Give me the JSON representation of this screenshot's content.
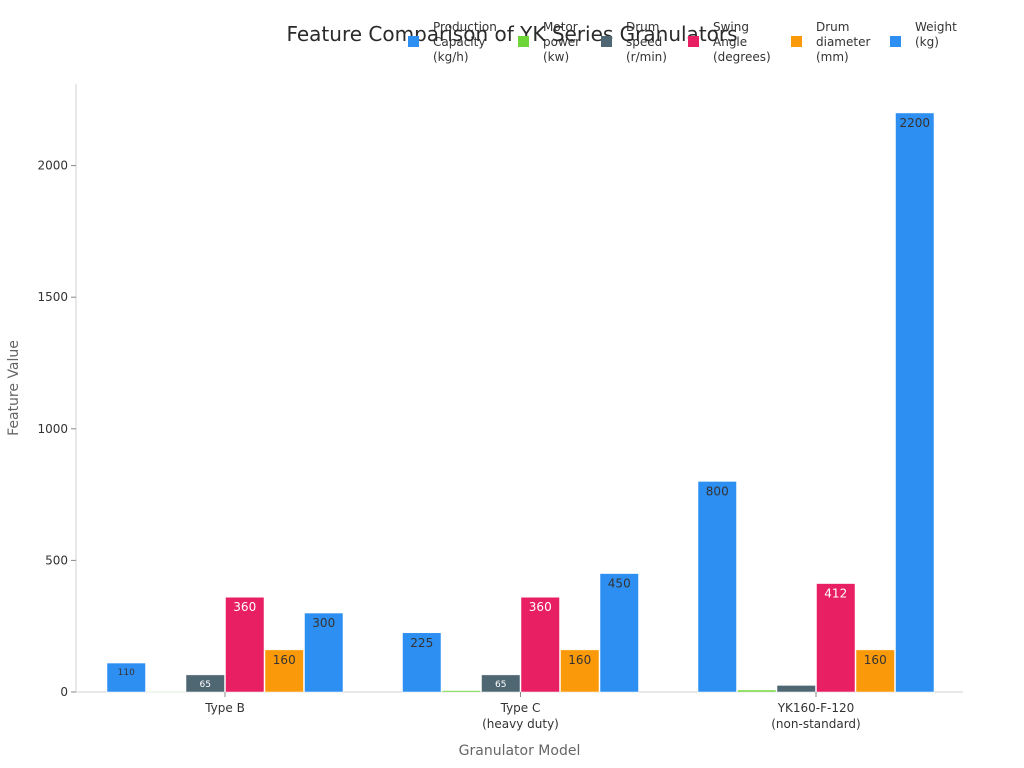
{
  "chart_data": {
    "type": "bar",
    "title": "Feature Comparison of YK Series Granulators",
    "xlabel": "Granulator Model",
    "ylabel": "Feature Value",
    "ylim": [
      0,
      2310
    ],
    "yticks": [
      0,
      500,
      1000,
      1500,
      2000
    ],
    "grid": false,
    "legend_position": "top-right",
    "categories": [
      "Type B\n",
      "Type C\n(heavy duty)",
      "YK160-F-120\n(non-standard)"
    ],
    "category_labels": [
      [
        "Type B"
      ],
      [
        "Type C",
        "(heavy duty)"
      ],
      [
        "YK160-F-120",
        "(non-standard)"
      ]
    ],
    "series": [
      {
        "name": "Production\nCapacity\n(kg/h)",
        "color": "#2e8ff2",
        "values": [
          110,
          225,
          800
        ],
        "labels": [
          "110",
          "225",
          "800"
        ],
        "label_color": "#333333"
      },
      {
        "name": "Motor\npower\n(kw)",
        "color": "#6fd63a",
        "values": [
          2.2,
          5.5,
          7.5
        ],
        "labels": [
          "",
          "",
          ""
        ],
        "label_color": "#333333"
      },
      {
        "name": "Drum\nspeed\n(r/min)",
        "color": "#4f6772",
        "values": [
          65,
          65,
          25
        ],
        "labels": [
          "65",
          "65",
          ""
        ],
        "label_color": "#ffffff"
      },
      {
        "name": "Swing\nAngle\n(degrees)",
        "color": "#e81f63",
        "values": [
          360,
          360,
          412
        ],
        "labels": [
          "360",
          "360",
          "412"
        ],
        "label_color": "#ffffff"
      },
      {
        "name": "Drum\ndiameter\n(mm)",
        "color": "#fa9a0a",
        "values": [
          160,
          160,
          160
        ],
        "labels": [
          "160",
          "160",
          "160"
        ],
        "label_color": "#333333"
      },
      {
        "name": "Weight\n(kg)",
        "color": "#2e8ff2",
        "values": [
          300,
          450,
          2200
        ],
        "labels": [
          "300",
          "450",
          "2200"
        ],
        "label_color": "#333333"
      }
    ]
  }
}
